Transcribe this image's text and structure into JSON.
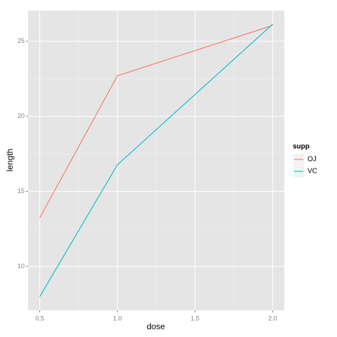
{
  "chart_data": {
    "type": "line",
    "x_label": "dose",
    "y_label": "length",
    "x": [
      0.5,
      1.0,
      2.0
    ],
    "series": [
      {
        "name": "OJ",
        "color": "#F8766D",
        "values": [
          13.23,
          22.7,
          26.06
        ]
      },
      {
        "name": "VC",
        "color": "#00BFC4",
        "values": [
          7.98,
          16.77,
          26.14
        ]
      }
    ],
    "legend_title": "supp",
    "legend_position": "right",
    "xlim": [
      0.425,
      2.075
    ],
    "xticks": [
      {
        "value": 0.5,
        "label": "0.5"
      },
      {
        "value": 1,
        "label": "1.0"
      },
      {
        "value": 1.5,
        "label": "1.5"
      },
      {
        "value": 2,
        "label": "2.0"
      }
    ],
    "ylim": [
      7.07,
      27.05
    ],
    "yticks": [
      10,
      15,
      20,
      25
    ],
    "grid": true
  }
}
